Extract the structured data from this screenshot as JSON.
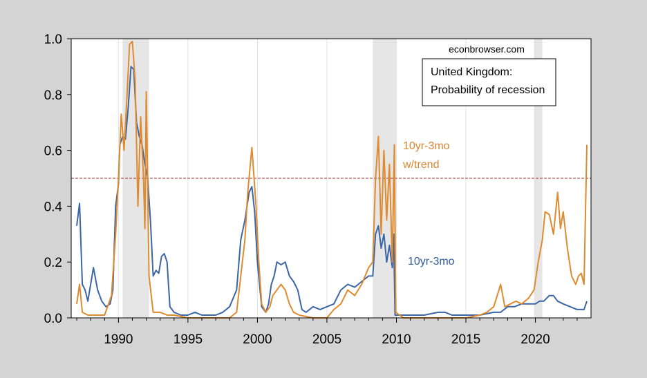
{
  "chart_data": {
    "type": "line",
    "title": "United Kingdom:\nProbability of recession",
    "title_lines": [
      "United Kingdom:",
      "Probability of recession"
    ],
    "source_text": "econbrowser.com",
    "xlabel": "",
    "ylabel": "",
    "xlim": [
      1986.6,
      2024.0
    ],
    "ylim": [
      0.0,
      1.0
    ],
    "x_ticks": [
      1990,
      1995,
      2000,
      2005,
      2010,
      2015,
      2020
    ],
    "x_tick_labels": [
      "1990",
      "1995",
      "2000",
      "2005",
      "2010",
      "2015",
      "2020"
    ],
    "y_ticks": [
      0.0,
      0.2,
      0.4,
      0.6,
      0.8,
      1.0
    ],
    "y_tick_labels": [
      "0.0",
      "0.2",
      "0.4",
      "0.6",
      "0.8",
      "1.0"
    ],
    "grid": true,
    "threshold_line": {
      "y": 0.5,
      "color": "#a52a2a",
      "style": "dashed"
    },
    "recession_shading": [
      [
        1990.3,
        1992.2
      ],
      [
        2008.3,
        2010.0
      ],
      [
        2019.9,
        2020.5
      ]
    ],
    "series": [
      {
        "name": "10yr-3mo",
        "color": "#3b65a5",
        "label_lines": [
          "10yr-3mo"
        ],
        "points": [
          [
            1987.0,
            0.33
          ],
          [
            1987.2,
            0.41
          ],
          [
            1987.4,
            0.12
          ],
          [
            1987.6,
            0.1
          ],
          [
            1987.8,
            0.06
          ],
          [
            1988.0,
            0.12
          ],
          [
            1988.2,
            0.18
          ],
          [
            1988.5,
            0.1
          ],
          [
            1988.8,
            0.06
          ],
          [
            1989.1,
            0.04
          ],
          [
            1989.4,
            0.05
          ],
          [
            1989.6,
            0.1
          ],
          [
            1989.8,
            0.4
          ],
          [
            1990.0,
            0.48
          ],
          [
            1990.1,
            0.62
          ],
          [
            1990.3,
            0.65
          ],
          [
            1990.5,
            0.64
          ],
          [
            1990.7,
            0.75
          ],
          [
            1990.9,
            0.9
          ],
          [
            1991.1,
            0.89
          ],
          [
            1991.3,
            0.7
          ],
          [
            1991.5,
            0.65
          ],
          [
            1991.7,
            0.62
          ],
          [
            1991.9,
            0.55
          ],
          [
            1992.1,
            0.5
          ],
          [
            1992.3,
            0.35
          ],
          [
            1992.5,
            0.15
          ],
          [
            1992.7,
            0.17
          ],
          [
            1992.9,
            0.16
          ],
          [
            1993.1,
            0.22
          ],
          [
            1993.3,
            0.23
          ],
          [
            1993.5,
            0.2
          ],
          [
            1993.7,
            0.04
          ],
          [
            1994.0,
            0.02
          ],
          [
            1994.5,
            0.01
          ],
          [
            1995.0,
            0.01
          ],
          [
            1995.5,
            0.02
          ],
          [
            1996.0,
            0.01
          ],
          [
            1997.0,
            0.01
          ],
          [
            1997.5,
            0.02
          ],
          [
            1998.0,
            0.04
          ],
          [
            1998.5,
            0.1
          ],
          [
            1998.8,
            0.28
          ],
          [
            1999.1,
            0.35
          ],
          [
            1999.4,
            0.45
          ],
          [
            1999.6,
            0.47
          ],
          [
            1999.8,
            0.38
          ],
          [
            2000.0,
            0.2
          ],
          [
            2000.3,
            0.04
          ],
          [
            2000.6,
            0.02
          ],
          [
            2000.8,
            0.05
          ],
          [
            2001.0,
            0.12
          ],
          [
            2001.2,
            0.15
          ],
          [
            2001.4,
            0.2
          ],
          [
            2001.7,
            0.19
          ],
          [
            2002.0,
            0.2
          ],
          [
            2002.3,
            0.15
          ],
          [
            2002.6,
            0.13
          ],
          [
            2002.9,
            0.1
          ],
          [
            2003.2,
            0.03
          ],
          [
            2003.5,
            0.02
          ],
          [
            2004.0,
            0.04
          ],
          [
            2004.5,
            0.03
          ],
          [
            2005.0,
            0.04
          ],
          [
            2005.5,
            0.05
          ],
          [
            2006.0,
            0.1
          ],
          [
            2006.5,
            0.12
          ],
          [
            2007.0,
            0.11
          ],
          [
            2007.5,
            0.13
          ],
          [
            2008.0,
            0.15
          ],
          [
            2008.3,
            0.15
          ],
          [
            2008.5,
            0.3
          ],
          [
            2008.7,
            0.33
          ],
          [
            2008.9,
            0.25
          ],
          [
            2009.1,
            0.3
          ],
          [
            2009.3,
            0.2
          ],
          [
            2009.5,
            0.26
          ],
          [
            2009.7,
            0.18
          ],
          [
            2009.8,
            0.3
          ],
          [
            2009.9,
            0.01
          ],
          [
            2010.5,
            0.01
          ],
          [
            2011.0,
            0.01
          ],
          [
            2012.0,
            0.01
          ],
          [
            2013.0,
            0.02
          ],
          [
            2013.5,
            0.02
          ],
          [
            2014.0,
            0.01
          ],
          [
            2015.0,
            0.01
          ],
          [
            2016.0,
            0.01
          ],
          [
            2017.0,
            0.02
          ],
          [
            2017.5,
            0.02
          ],
          [
            2018.0,
            0.04
          ],
          [
            2018.5,
            0.04
          ],
          [
            2019.0,
            0.05
          ],
          [
            2019.5,
            0.05
          ],
          [
            2020.0,
            0.05
          ],
          [
            2020.3,
            0.06
          ],
          [
            2020.6,
            0.06
          ],
          [
            2021.0,
            0.08
          ],
          [
            2021.3,
            0.08
          ],
          [
            2021.6,
            0.06
          ],
          [
            2022.0,
            0.05
          ],
          [
            2022.5,
            0.04
          ],
          [
            2023.0,
            0.03
          ],
          [
            2023.3,
            0.03
          ],
          [
            2023.5,
            0.03
          ],
          [
            2023.7,
            0.06
          ]
        ]
      },
      {
        "name": "10yr-3mo w/trend",
        "color": "#e08a2e",
        "label_lines": [
          "10yr-3mo",
          "w/trend"
        ],
        "points": [
          [
            1987.0,
            0.05
          ],
          [
            1987.2,
            0.12
          ],
          [
            1987.4,
            0.02
          ],
          [
            1987.8,
            0.01
          ],
          [
            1988.5,
            0.01
          ],
          [
            1989.0,
            0.01
          ],
          [
            1989.5,
            0.08
          ],
          [
            1989.8,
            0.3
          ],
          [
            1990.0,
            0.5
          ],
          [
            1990.2,
            0.73
          ],
          [
            1990.4,
            0.6
          ],
          [
            1990.6,
            0.78
          ],
          [
            1990.8,
            0.98
          ],
          [
            1991.0,
            0.99
          ],
          [
            1991.2,
            0.85
          ],
          [
            1991.4,
            0.4
          ],
          [
            1991.6,
            0.72
          ],
          [
            1991.8,
            0.5
          ],
          [
            1991.9,
            0.32
          ],
          [
            1992.0,
            0.81
          ],
          [
            1992.2,
            0.15
          ],
          [
            1992.5,
            0.02
          ],
          [
            1993.0,
            0.02
          ],
          [
            1993.5,
            0.01
          ],
          [
            1994.0,
            0.01
          ],
          [
            1995.0,
            0.0
          ],
          [
            1996.0,
            0.0
          ],
          [
            1997.0,
            0.0
          ],
          [
            1998.0,
            0.0
          ],
          [
            1998.5,
            0.02
          ],
          [
            1998.8,
            0.15
          ],
          [
            1999.1,
            0.28
          ],
          [
            1999.3,
            0.45
          ],
          [
            1999.6,
            0.61
          ],
          [
            1999.9,
            0.4
          ],
          [
            2000.1,
            0.2
          ],
          [
            2000.3,
            0.05
          ],
          [
            2000.6,
            0.02
          ],
          [
            2000.9,
            0.04
          ],
          [
            2001.1,
            0.08
          ],
          [
            2001.4,
            0.1
          ],
          [
            2001.7,
            0.12
          ],
          [
            2002.0,
            0.1
          ],
          [
            2002.3,
            0.05
          ],
          [
            2002.6,
            0.02
          ],
          [
            2003.0,
            0.01
          ],
          [
            2004.0,
            0.0
          ],
          [
            2005.0,
            0.0
          ],
          [
            2005.5,
            0.03
          ],
          [
            2006.0,
            0.05
          ],
          [
            2006.5,
            0.1
          ],
          [
            2007.0,
            0.08
          ],
          [
            2007.5,
            0.12
          ],
          [
            2008.0,
            0.18
          ],
          [
            2008.3,
            0.2
          ],
          [
            2008.5,
            0.5
          ],
          [
            2008.7,
            0.65
          ],
          [
            2008.9,
            0.3
          ],
          [
            2009.1,
            0.6
          ],
          [
            2009.3,
            0.35
          ],
          [
            2009.5,
            0.55
          ],
          [
            2009.7,
            0.2
          ],
          [
            2009.85,
            0.62
          ],
          [
            2009.95,
            0.02
          ],
          [
            2010.5,
            0.0
          ],
          [
            2012.0,
            0.0
          ],
          [
            2014.0,
            0.0
          ],
          [
            2015.0,
            0.0
          ],
          [
            2016.0,
            0.01
          ],
          [
            2016.5,
            0.02
          ],
          [
            2017.0,
            0.04
          ],
          [
            2017.5,
            0.12
          ],
          [
            2017.8,
            0.04
          ],
          [
            2018.2,
            0.05
          ],
          [
            2018.6,
            0.06
          ],
          [
            2019.0,
            0.05
          ],
          [
            2019.5,
            0.07
          ],
          [
            2019.9,
            0.1
          ],
          [
            2020.2,
            0.2
          ],
          [
            2020.5,
            0.28
          ],
          [
            2020.7,
            0.38
          ],
          [
            2021.0,
            0.37
          ],
          [
            2021.3,
            0.3
          ],
          [
            2021.6,
            0.45
          ],
          [
            2021.8,
            0.32
          ],
          [
            2022.0,
            0.38
          ],
          [
            2022.3,
            0.25
          ],
          [
            2022.6,
            0.15
          ],
          [
            2022.9,
            0.12
          ],
          [
            2023.1,
            0.15
          ],
          [
            2023.3,
            0.16
          ],
          [
            2023.5,
            0.12
          ],
          [
            2023.7,
            0.62
          ]
        ]
      }
    ]
  }
}
